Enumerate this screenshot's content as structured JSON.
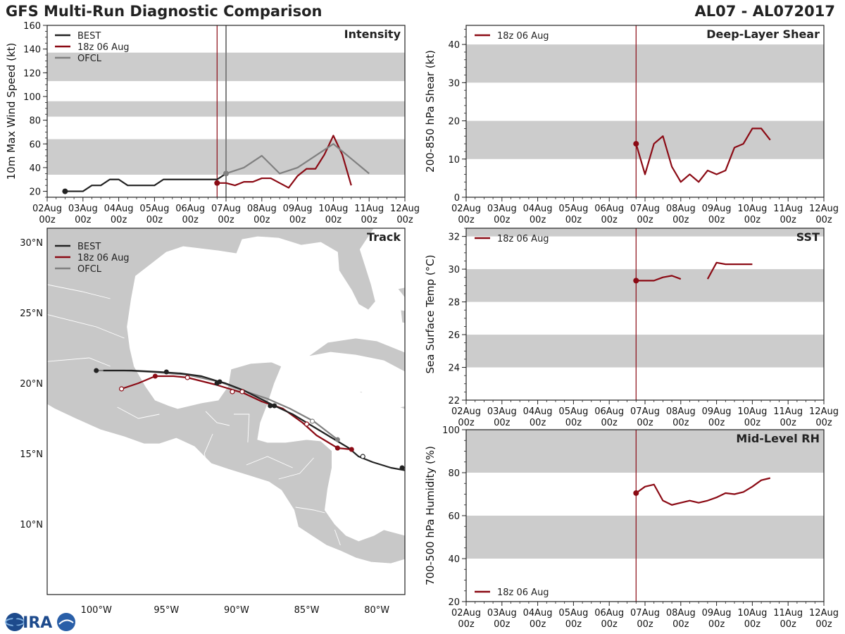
{
  "header": {
    "title": "GFS Multi-Run Diagnostic Comparison",
    "storm_id": "AL07 - AL072017"
  },
  "logo": {
    "text": "CIRA"
  },
  "colors": {
    "best": "#222222",
    "model": "#8b0a14",
    "ofcl": "#808080",
    "band": "#cccccc",
    "land": "#c8c8c8"
  },
  "legend": {
    "best": "BEST",
    "model": "18z 06 Aug",
    "ofcl": "OFCL"
  },
  "time_axis": {
    "labels": [
      [
        "02Aug",
        "00z"
      ],
      [
        "03Aug",
        "00z"
      ],
      [
        "04Aug",
        "00z"
      ],
      [
        "05Aug",
        "00z"
      ],
      [
        "06Aug",
        "00z"
      ],
      [
        "07Aug",
        "00z"
      ],
      [
        "08Aug",
        "00z"
      ],
      [
        "09Aug",
        "00z"
      ],
      [
        "10Aug",
        "00z"
      ],
      [
        "11Aug",
        "00z"
      ],
      [
        "12Aug",
        "00z"
      ]
    ],
    "range_days": [
      0,
      10
    ],
    "init_day": 4.75,
    "ofcl_day": 5.0
  },
  "chart_data": [
    {
      "id": "intensity",
      "type": "line",
      "title": "Intensity",
      "ylabel": "10m Max Wind Speed (kt)",
      "ylim": [
        15,
        160
      ],
      "yticks": [
        20,
        40,
        60,
        80,
        100,
        120,
        140,
        160
      ],
      "bands": [
        [
          34,
          64
        ],
        [
          83,
          96
        ],
        [
          113,
          137
        ]
      ],
      "series": [
        {
          "name": "BEST",
          "x": [
            0.5,
            1.0,
            1.25,
            1.5,
            1.75,
            2.0,
            2.25,
            2.5,
            2.75,
            3.0,
            3.25,
            3.5,
            3.75,
            4.0,
            4.25,
            4.5,
            4.75,
            5.0
          ],
          "y": [
            20,
            20,
            25,
            25,
            30,
            30,
            25,
            25,
            25,
            25,
            30,
            30,
            30,
            30,
            30,
            30,
            30,
            35
          ]
        },
        {
          "name": "18z 06 Aug",
          "x": [
            4.75,
            5.0,
            5.25,
            5.5,
            5.75,
            6.0,
            6.25,
            6.5,
            6.75,
            7.0,
            7.25,
            7.5,
            7.75,
            8.0,
            8.25,
            8.5
          ],
          "y": [
            27,
            27,
            25,
            28,
            28,
            31,
            31,
            27,
            23,
            33,
            39,
            39,
            51,
            67,
            51,
            25
          ]
        },
        {
          "name": "OFCL",
          "x": [
            5.0,
            5.5,
            6.0,
            6.5,
            7.0,
            8.0,
            9.0
          ],
          "y": [
            35,
            40,
            50,
            35,
            40,
            60,
            35
          ]
        }
      ]
    },
    {
      "id": "shear",
      "type": "line",
      "title": "Deep-Layer Shear",
      "ylabel": "200-850 hPa Shear (kt)",
      "ylim": [
        0,
        45
      ],
      "yticks": [
        0,
        10,
        20,
        30,
        40
      ],
      "bands": [
        [
          10,
          20
        ],
        [
          30,
          40
        ]
      ],
      "series": [
        {
          "name": "18z 06 Aug",
          "x": [
            4.75,
            5.0,
            5.25,
            5.5,
            5.75,
            6.0,
            6.25,
            6.5,
            6.75,
            7.0,
            7.25,
            7.5,
            7.75,
            8.0,
            8.25,
            8.5
          ],
          "y": [
            14,
            6,
            14,
            16,
            8,
            4,
            6,
            4,
            7,
            6,
            7,
            13,
            14,
            18,
            18,
            15
          ]
        }
      ]
    },
    {
      "id": "sst",
      "type": "line",
      "title": "SST",
      "ylabel": "Sea Surface Temp (°C)",
      "ylim": [
        22,
        32.5
      ],
      "yticks": [
        22,
        24,
        26,
        28,
        30,
        32
      ],
      "bands": [
        [
          24,
          26
        ],
        [
          28,
          30
        ],
        [
          32,
          32.5
        ]
      ],
      "series": [
        {
          "name": "18z 06 Aug",
          "segments": [
            {
              "x": [
                4.75,
                5.0,
                5.25,
                5.5,
                5.75,
                6.0
              ],
              "y": [
                29.3,
                29.3,
                29.3,
                29.5,
                29.6,
                29.4
              ]
            },
            {
              "x": [
                6.75,
                7.0,
                7.25,
                7.5,
                7.75,
                8.0
              ],
              "y": [
                29.4,
                30.4,
                30.3,
                30.3,
                30.3,
                30.3
              ]
            }
          ]
        }
      ]
    },
    {
      "id": "rh",
      "type": "line",
      "title": "Mid-Level RH",
      "ylabel": "700-500 hPa Humidity (%)",
      "ylim": [
        20,
        100
      ],
      "yticks": [
        20,
        40,
        60,
        80,
        100
      ],
      "bands": [
        [
          40,
          60
        ],
        [
          80,
          100
        ]
      ],
      "series": [
        {
          "name": "18z 06 Aug",
          "x": [
            4.75,
            5.0,
            5.25,
            5.5,
            5.75,
            6.0,
            6.25,
            6.5,
            6.75,
            7.0,
            7.25,
            7.5,
            7.75,
            8.0,
            8.25,
            8.5
          ],
          "y": [
            70.5,
            73.5,
            74.5,
            67,
            65,
            66,
            67,
            66,
            67,
            68.5,
            70.5,
            70,
            71,
            73.5,
            76.5,
            77.5
          ]
        }
      ]
    },
    {
      "id": "track",
      "type": "map",
      "title": "Track",
      "xlim": [
        -103.5,
        -78
      ],
      "ylim": [
        5,
        31
      ],
      "xticks": [
        -100,
        -95,
        -90,
        -85,
        -80
      ],
      "xtick_labels": [
        "100°W",
        "95°W",
        "90°W",
        "85°W",
        "80°W"
      ],
      "yticks": [
        10,
        15,
        20,
        25,
        30
      ],
      "ytick_labels": [
        "10°N",
        "15°N",
        "20°N",
        "25°N",
        "30°N"
      ],
      "series": [
        {
          "name": "BEST",
          "lon": [
            -77.9,
            -79.0,
            -80.3,
            -81.3,
            -82.0,
            -83.0,
            -84.5,
            -86.0,
            -87.3,
            -88.3,
            -89.5,
            -90.8,
            -91.2,
            -92.5,
            -94.0,
            -95.5,
            -97.5,
            -99.5
          ],
          "lat": [
            13.8,
            14.0,
            14.4,
            14.8,
            15.4,
            16.0,
            16.9,
            17.8,
            18.4,
            18.9,
            19.5,
            20.0,
            20.1,
            20.5,
            20.7,
            20.8,
            20.9,
            20.9
          ],
          "filled_dots": [
            [
              -78.2,
              14.0
            ],
            [
              -82.8,
              15.4
            ],
            [
              -87.3,
              18.4
            ],
            [
              -87.6,
              18.4
            ],
            [
              -91.2,
              20.1
            ],
            [
              -91.4,
              20.0
            ],
            [
              -95.0,
              20.8
            ],
            [
              -100.0,
              20.9
            ]
          ],
          "open_dots": [
            [
              -81.0,
              14.8
            ]
          ]
        },
        {
          "name": "18z 06 Aug",
          "lon": [
            -81.8,
            -82.8,
            -84.3,
            -85.3,
            -86.7,
            -88.2,
            -89.5,
            -90.5,
            -91.5,
            -92.3,
            -93.5,
            -94.5,
            -95.8,
            -97.0,
            -98.2
          ],
          "lat": [
            15.3,
            15.4,
            16.3,
            17.2,
            18.2,
            18.7,
            19.3,
            19.6,
            19.9,
            20.1,
            20.4,
            20.5,
            20.5,
            20.0,
            19.6
          ],
          "filled_dots": [
            [
              -81.8,
              15.3
            ],
            [
              -82.8,
              15.4
            ],
            [
              -95.8,
              20.5
            ]
          ],
          "open_dots": [
            [
              -85.0,
              17.1
            ],
            [
              -89.6,
              19.4
            ],
            [
              -90.3,
              19.4
            ],
            [
              -93.5,
              20.4
            ],
            [
              -98.2,
              19.6
            ]
          ]
        },
        {
          "name": "OFCL",
          "lon": [
            -82.8,
            -84.5,
            -86.2,
            -87.8,
            -89.6,
            -91.2,
            -93.5,
            -96.0,
            -98.0,
            -100.0
          ],
          "lat": [
            16.0,
            17.3,
            18.2,
            18.9,
            19.5,
            20.1,
            20.6,
            20.8,
            20.9,
            20.9
          ],
          "filled_dots": [
            [
              -82.8,
              16.0
            ]
          ],
          "open_dots": [
            [
              -84.6,
              17.3
            ]
          ]
        }
      ]
    }
  ]
}
